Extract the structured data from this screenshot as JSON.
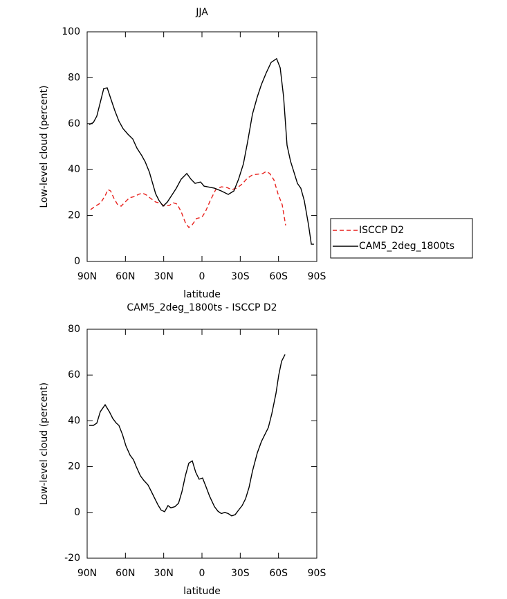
{
  "chart_data": [
    {
      "type": "line",
      "title": "JJA",
      "xlabel": "latitude",
      "ylabel": "Low-level cloud (percent)",
      "xlim": [
        90,
        -90
      ],
      "ylim": [
        0,
        100
      ],
      "xticks": [
        {
          "value": 90,
          "label": "90N"
        },
        {
          "value": 60,
          "label": "60N"
        },
        {
          "value": 30,
          "label": "30N"
        },
        0,
        {
          "value": -30,
          "label": "30S"
        },
        {
          "value": -60,
          "label": "60S"
        },
        {
          "value": -90,
          "label": "90S"
        }
      ],
      "yticks": [
        0,
        20,
        40,
        60,
        80,
        100
      ],
      "legend": "outside-right",
      "series": [
        {
          "name": "ISCCP D2",
          "color": "#e8211d",
          "dash": true,
          "x": [
            87.3,
            83.5,
            80.8,
            79.0,
            75.9,
            73.7,
            71.6,
            68.9,
            66.1,
            63.4,
            60.7,
            56.9,
            52.6,
            49.9,
            46.6,
            43.4,
            40.1,
            36.3,
            32.5,
            29.3,
            25.5,
            22.8,
            19.5,
            16.3,
            13.0,
            10.3,
            7.6,
            4.3,
            0.0,
            -2.7,
            -6.5,
            -10.8,
            -15.2,
            -19.5,
            -23.3,
            -27.1,
            -31.5,
            -35.3,
            -39.6,
            -43.9,
            -47.7,
            -50.4,
            -53.1,
            -56.4,
            -59.6,
            -62.9,
            -65.6
          ],
          "values": [
            22.6,
            24.1,
            25.0,
            25.9,
            28.6,
            31.3,
            30.7,
            27.4,
            24.7,
            24.1,
            25.6,
            27.7,
            28.3,
            29.2,
            29.8,
            28.9,
            27.4,
            25.9,
            25.3,
            24.1,
            24.4,
            25.6,
            25.0,
            21.7,
            16.9,
            14.8,
            16.0,
            18.7,
            19.3,
            21.7,
            26.5,
            31.3,
            32.5,
            32.2,
            31.3,
            31.9,
            33.7,
            36.1,
            37.7,
            38.0,
            38.3,
            39.2,
            38.3,
            35.5,
            29.5,
            24.7,
            15.7
          ]
        },
        {
          "name": "CAM5_2deg_1800ts",
          "color": "#000000",
          "dash": false,
          "x": [
            88.4,
            85.1,
            82.4,
            79.7,
            77.0,
            74.3,
            71.6,
            68.3,
            65.1,
            61.8,
            58.0,
            54.2,
            51.0,
            47.2,
            44.5,
            41.2,
            39.0,
            36.3,
            33.6,
            30.4,
            27.1,
            23.9,
            20.1,
            16.3,
            11.9,
            8.6,
            5.4,
            1.1,
            -1.6,
            -4.3,
            -9.8,
            -15.2,
            -20.6,
            -25.0,
            -28.7,
            -32.5,
            -35.8,
            -39.6,
            -43.4,
            -46.6,
            -50.4,
            -54.2,
            -58.5,
            -61.3,
            -64.0,
            -66.7,
            -69.4,
            -72.1,
            -74.8,
            -77.5,
            -80.2,
            -83.5,
            -85.7,
            -87.8
          ],
          "values": [
            59.6,
            60.5,
            63.3,
            69.3,
            75.3,
            75.6,
            71.1,
            65.7,
            61.1,
            57.8,
            55.4,
            53.3,
            49.4,
            46.1,
            43.4,
            38.9,
            34.6,
            29.5,
            26.5,
            24.1,
            25.9,
            28.6,
            31.9,
            35.8,
            38.3,
            35.8,
            34.0,
            34.6,
            32.8,
            32.5,
            31.9,
            30.7,
            29.2,
            30.7,
            35.8,
            42.5,
            52.1,
            64.2,
            71.7,
            77.1,
            82.2,
            86.7,
            88.3,
            84.3,
            71.7,
            50.6,
            43.7,
            38.9,
            34.0,
            31.9,
            26.5,
            16.0,
            7.5,
            7.5
          ]
        }
      ]
    },
    {
      "type": "line",
      "title": "CAM5_2deg_1800ts - ISCCP D2",
      "xlabel": "latitude",
      "ylabel": "Low-level cloud (percent)",
      "xlim": [
        90,
        -90
      ],
      "ylim": [
        -20,
        80
      ],
      "xticks": [
        {
          "value": 90,
          "label": "90N"
        },
        {
          "value": 60,
          "label": "60N"
        },
        {
          "value": 30,
          "label": "30N"
        },
        0,
        {
          "value": -30,
          "label": "30S"
        },
        {
          "value": -60,
          "label": "60S"
        },
        {
          "value": -90,
          "label": "90S"
        }
      ],
      "yticks": [
        -20,
        0,
        20,
        40,
        60,
        80
      ],
      "series": [
        {
          "color": "#000000",
          "dash": false,
          "x": [
            88.4,
            85.1,
            82.4,
            79.7,
            75.9,
            72.6,
            69.9,
            67.2,
            65.1,
            62.3,
            59.6,
            56.4,
            53.7,
            51.5,
            48.3,
            45.6,
            42.3,
            39.6,
            36.9,
            34.2,
            32.0,
            29.3,
            26.6,
            24.4,
            21.2,
            18.4,
            15.7,
            13.0,
            10.3,
            7.6,
            4.9,
            2.2,
            -0.5,
            -3.3,
            -6.0,
            -9.8,
            -12.5,
            -15.2,
            -17.9,
            -20.6,
            -23.3,
            -26.0,
            -28.7,
            -31.5,
            -34.2,
            -36.9,
            -39.6,
            -43.4,
            -46.6,
            -49.3,
            -52.0,
            -54.7,
            -58.0,
            -60.2,
            -62.4,
            -65.1
          ],
          "values": [
            38,
            38,
            39,
            44,
            47,
            44,
            41,
            39,
            38,
            34,
            29,
            25,
            23,
            20,
            16,
            14,
            12,
            9,
            6,
            3,
            1,
            0.3,
            3,
            2,
            2.5,
            4,
            9,
            16,
            21.5,
            22.5,
            17.5,
            14.5,
            15,
            11,
            7,
            2.5,
            0.5,
            -0.5,
            0,
            -0.5,
            -1.5,
            -1,
            1,
            3,
            6,
            11,
            18,
            26,
            31,
            34,
            37,
            43,
            52,
            60,
            66,
            69
          ]
        }
      ]
    }
  ]
}
